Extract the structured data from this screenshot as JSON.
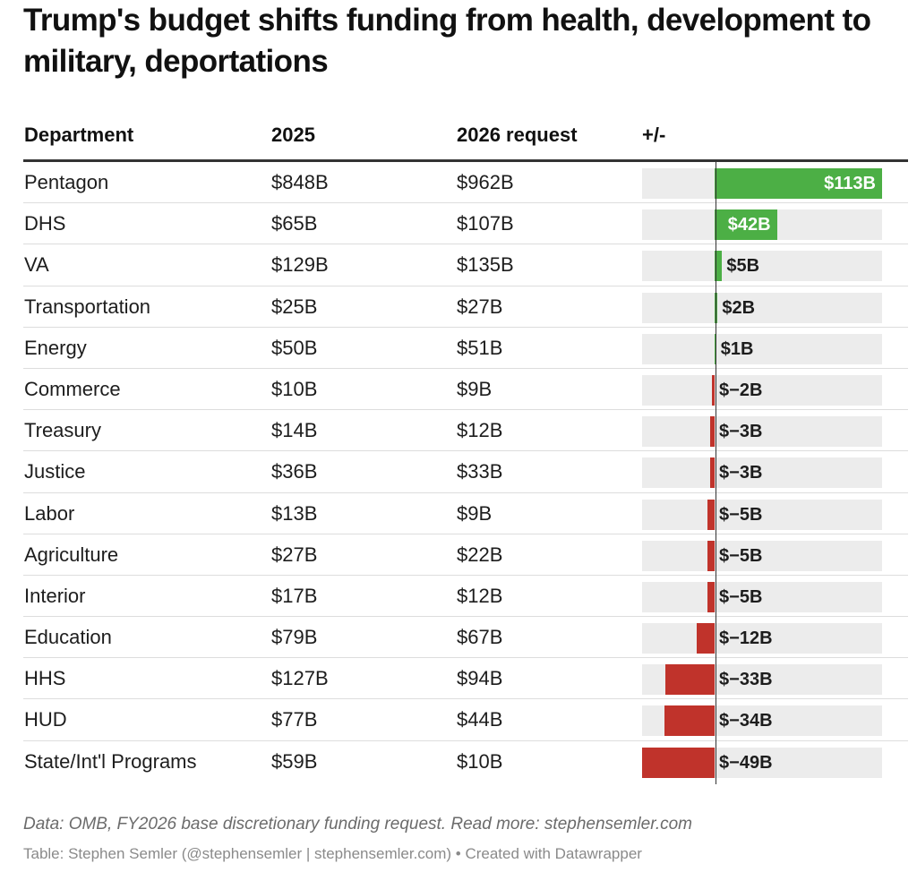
{
  "title": "Trump's budget shifts funding from health, development to military, deportations",
  "headers": {
    "department": "Department",
    "y2025": "2025",
    "y2026": "2026 request",
    "change": "+/-"
  },
  "colors": {
    "positive": "#4caf45",
    "negative": "#c0332b",
    "track": "#ececec"
  },
  "chart_data": {
    "type": "table",
    "columns": [
      "Department",
      "2025",
      "2026 request",
      "+/-"
    ],
    "change_range": [
      -49,
      113
    ],
    "rows": [
      {
        "department": "Pentagon",
        "y2025": "$848B",
        "y2026": "$962B",
        "change": 113,
        "change_label": "$113B"
      },
      {
        "department": "DHS",
        "y2025": "$65B",
        "y2026": "$107B",
        "change": 42,
        "change_label": "$42B"
      },
      {
        "department": "VA",
        "y2025": "$129B",
        "y2026": "$135B",
        "change": 5,
        "change_label": "$5B"
      },
      {
        "department": "Transportation",
        "y2025": "$25B",
        "y2026": "$27B",
        "change": 2,
        "change_label": "$2B"
      },
      {
        "department": "Energy",
        "y2025": "$50B",
        "y2026": "$51B",
        "change": 1,
        "change_label": "$1B"
      },
      {
        "department": "Commerce",
        "y2025": "$10B",
        "y2026": "$9B",
        "change": -2,
        "change_label": "$−2B"
      },
      {
        "department": "Treasury",
        "y2025": "$14B",
        "y2026": "$12B",
        "change": -3,
        "change_label": "$−3B"
      },
      {
        "department": "Justice",
        "y2025": "$36B",
        "y2026": "$33B",
        "change": -3,
        "change_label": "$−3B"
      },
      {
        "department": "Labor",
        "y2025": "$13B",
        "y2026": "$9B",
        "change": -5,
        "change_label": "$−5B"
      },
      {
        "department": "Agriculture",
        "y2025": "$27B",
        "y2026": "$22B",
        "change": -5,
        "change_label": "$−5B"
      },
      {
        "department": "Interior",
        "y2025": "$17B",
        "y2026": "$12B",
        "change": -5,
        "change_label": "$−5B"
      },
      {
        "department": "Education",
        "y2025": "$79B",
        "y2026": "$67B",
        "change": -12,
        "change_label": "$−12B"
      },
      {
        "department": "HHS",
        "y2025": "$127B",
        "y2026": "$94B",
        "change": -33,
        "change_label": "$−33B"
      },
      {
        "department": "HUD",
        "y2025": "$77B",
        "y2026": "$44B",
        "change": -34,
        "change_label": "$−34B"
      },
      {
        "department": "State/Int'l Programs",
        "y2025": "$59B",
        "y2026": "$10B",
        "change": -49,
        "change_label": "$−49B"
      }
    ]
  },
  "note": "Data: OMB, FY2026 base discretionary funding request. Read more: stephensemler.com",
  "credit": "Table: Stephen Semler (@stephensemler | stephensemler.com) • Created with Datawrapper"
}
